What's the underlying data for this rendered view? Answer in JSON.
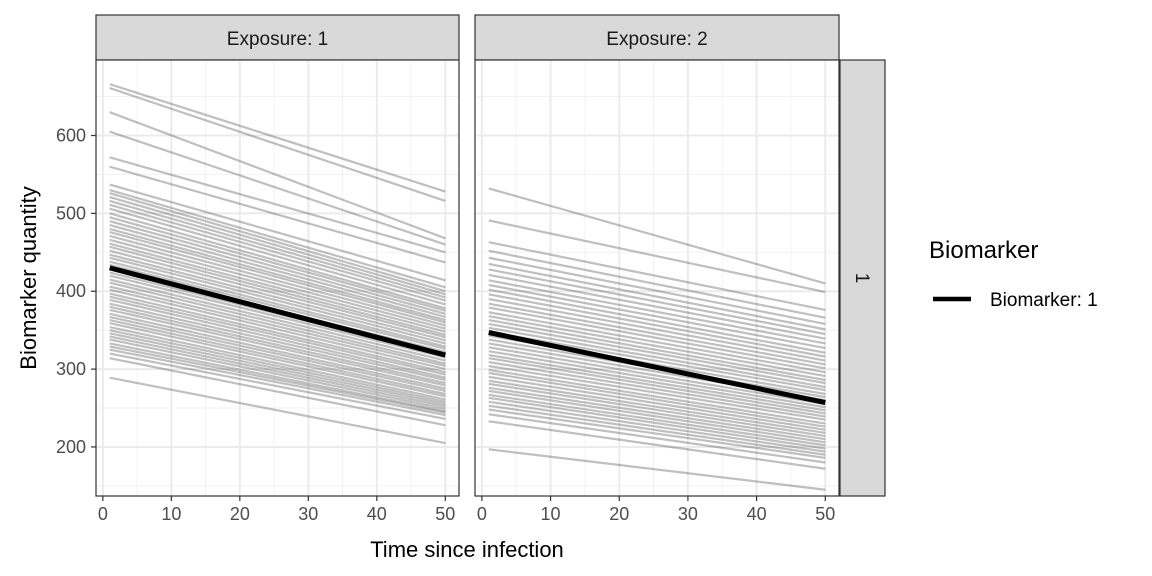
{
  "chart_data": {
    "type": "line",
    "xlabel": "Time since infection",
    "ylabel": "Biomarker quantity",
    "xlim": [
      -1,
      52
    ],
    "ylim": [
      137,
      697
    ],
    "x_ticks": [
      0,
      10,
      20,
      30,
      40,
      50
    ],
    "y_ticks": [
      200,
      300,
      400,
      500,
      600
    ],
    "grid": true,
    "facet_row_label": "1",
    "legend": {
      "title": "Biomarker",
      "entries": [
        "Biomarker: 1"
      ],
      "position": "right"
    },
    "colors": {
      "individual": "#000000",
      "mean": "#000000",
      "strip": "#d9d9d9",
      "grid": "#ebebeb"
    },
    "panels": [
      {
        "label": "Exposure: 1",
        "mean": {
          "x": [
            1,
            50
          ],
          "y": [
            430,
            318
          ]
        },
        "individuals": [
          [
            666,
            528
          ],
          [
            661,
            516
          ],
          [
            630,
            468
          ],
          [
            605,
            460
          ],
          [
            572,
            450
          ],
          [
            560,
            437
          ],
          [
            537,
            414
          ],
          [
            530,
            405
          ],
          [
            526,
            400
          ],
          [
            521,
            396
          ],
          [
            516,
            392
          ],
          [
            511,
            388
          ],
          [
            506,
            383
          ],
          [
            500,
            378
          ],
          [
            495,
            375
          ],
          [
            490,
            371
          ],
          [
            485,
            367
          ],
          [
            480,
            363
          ],
          [
            476,
            360
          ],
          [
            471,
            356
          ],
          [
            466,
            352
          ],
          [
            461,
            348
          ],
          [
            457,
            344
          ],
          [
            452,
            341
          ],
          [
            447,
            337
          ],
          [
            443,
            333
          ],
          [
            438,
            329
          ],
          [
            434,
            326
          ],
          [
            429,
            322
          ],
          [
            424,
            318
          ],
          [
            420,
            315
          ],
          [
            415,
            311
          ],
          [
            411,
            307
          ],
          [
            406,
            304
          ],
          [
            402,
            300
          ],
          [
            397,
            296
          ],
          [
            393,
            293
          ],
          [
            389,
            289
          ],
          [
            384,
            286
          ],
          [
            380,
            282
          ],
          [
            376,
            279
          ],
          [
            371,
            275
          ],
          [
            367,
            272
          ],
          [
            363,
            268
          ],
          [
            359,
            265
          ],
          [
            354,
            261
          ],
          [
            350,
            258
          ],
          [
            346,
            255
          ],
          [
            342,
            252
          ],
          [
            338,
            249
          ],
          [
            333,
            246
          ],
          [
            329,
            244
          ],
          [
            325,
            241
          ],
          [
            320,
            236
          ],
          [
            314,
            228
          ],
          [
            289,
            205
          ]
        ]
      },
      {
        "label": "Exposure: 2",
        "mean": {
          "x": [
            1,
            50
          ],
          "y": [
            347,
            257
          ]
        },
        "individuals": [
          [
            532,
            410
          ],
          [
            491,
            399
          ],
          [
            463,
            376
          ],
          [
            452,
            366
          ],
          [
            443,
            358
          ],
          [
            435,
            351
          ],
          [
            428,
            345
          ],
          [
            421,
            339
          ],
          [
            414,
            333
          ],
          [
            408,
            327
          ],
          [
            402,
            321
          ],
          [
            396,
            316
          ],
          [
            390,
            311
          ],
          [
            384,
            306
          ],
          [
            379,
            301
          ],
          [
            373,
            296
          ],
          [
            368,
            291
          ],
          [
            363,
            286
          ],
          [
            358,
            282
          ],
          [
            353,
            277
          ],
          [
            348,
            273
          ],
          [
            343,
            268
          ],
          [
            338,
            264
          ],
          [
            333,
            260
          ],
          [
            328,
            255
          ],
          [
            323,
            251
          ],
          [
            318,
            247
          ],
          [
            314,
            243
          ],
          [
            309,
            239
          ],
          [
            304,
            235
          ],
          [
            299,
            230
          ],
          [
            295,
            226
          ],
          [
            290,
            222
          ],
          [
            285,
            218
          ],
          [
            281,
            214
          ],
          [
            276,
            210
          ],
          [
            272,
            206
          ],
          [
            267,
            202
          ],
          [
            263,
            198
          ],
          [
            258,
            194
          ],
          [
            253,
            190
          ],
          [
            248,
            186
          ],
          [
            242,
            180
          ],
          [
            233,
            172
          ],
          [
            197,
            145
          ]
        ]
      }
    ]
  }
}
